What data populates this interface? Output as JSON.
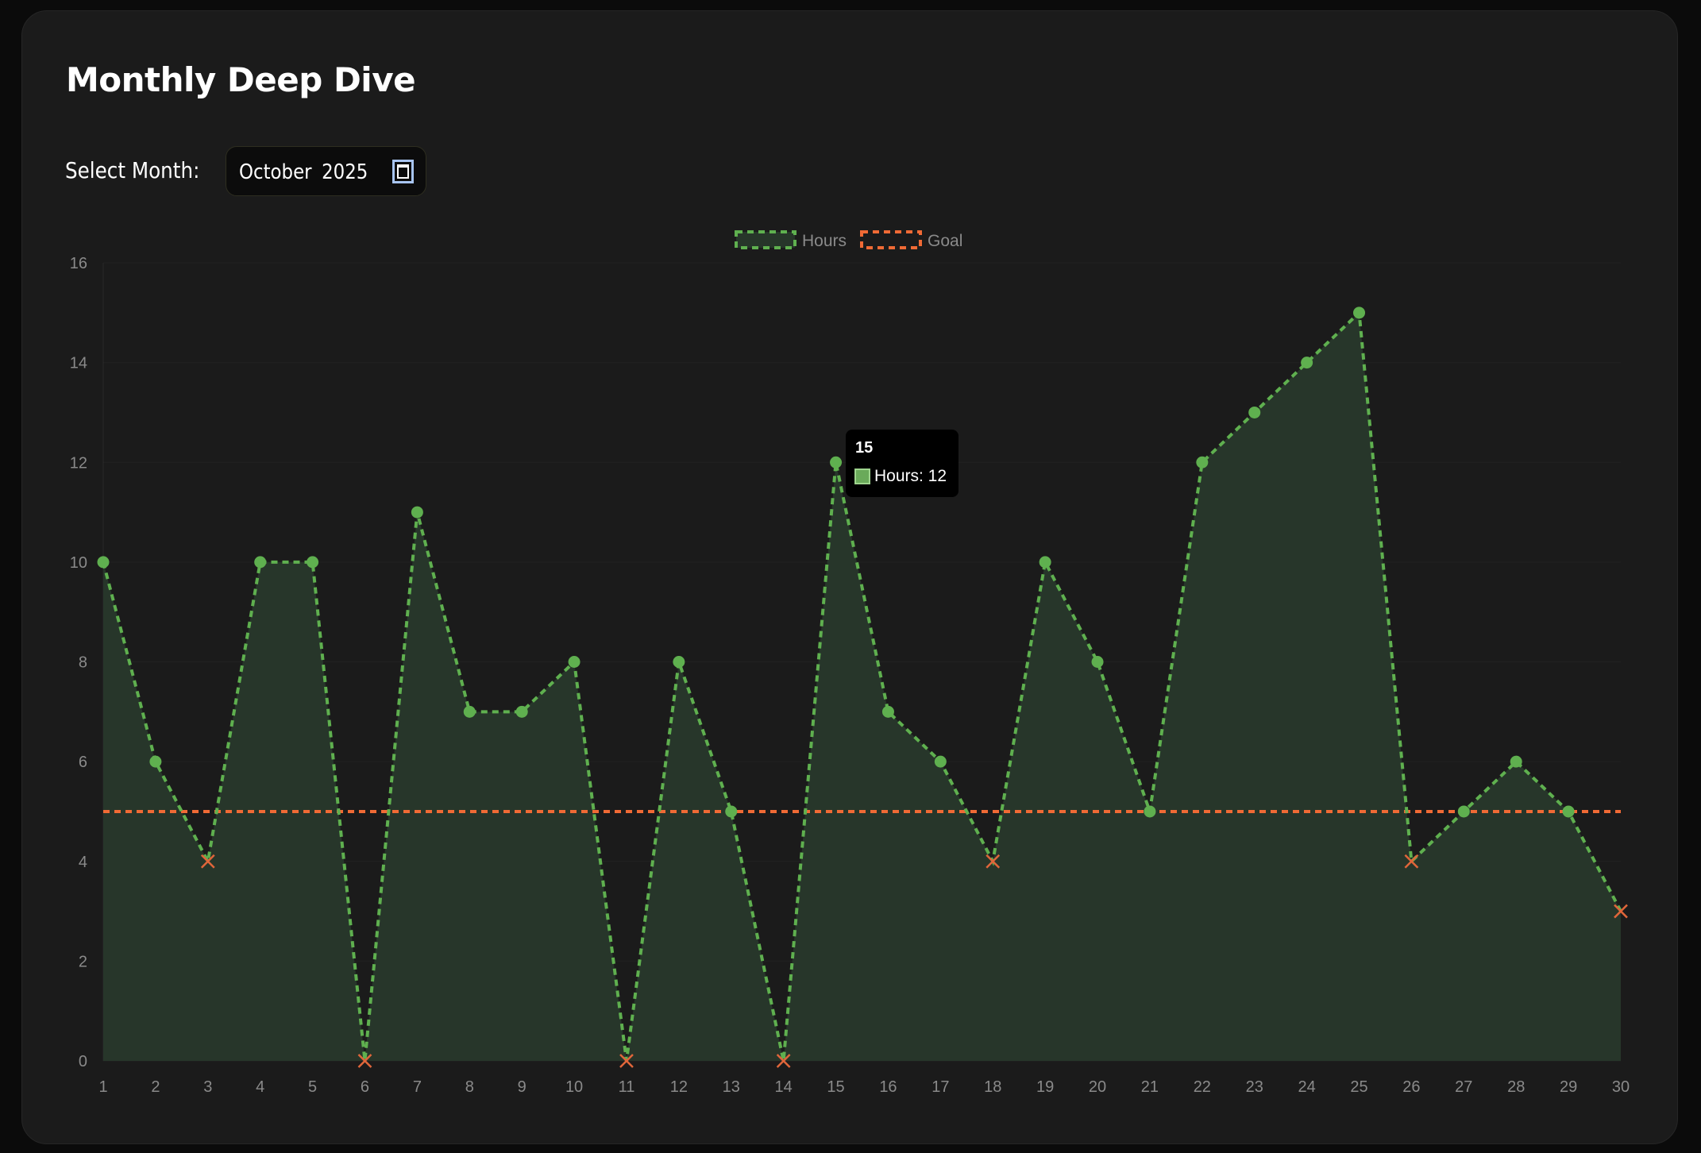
{
  "page": {
    "title": "Monthly Deep Dive",
    "select_label": "Select Month:",
    "month_value": "October 2025",
    "calendar_icon": "calendar-icon"
  },
  "colors": {
    "hours": "#5fb04f",
    "hours_fill": "#27362a",
    "goal": "#f06a35",
    "below_goal_marker": "#e0663a"
  },
  "chart_data": {
    "type": "line",
    "title": "",
    "x": [
      1,
      2,
      3,
      4,
      5,
      6,
      7,
      8,
      9,
      10,
      11,
      12,
      13,
      14,
      15,
      16,
      17,
      18,
      19,
      20,
      21,
      22,
      23,
      24,
      25,
      26,
      27,
      28,
      29,
      30
    ],
    "series": [
      {
        "name": "Hours",
        "values": [
          10,
          6,
          4,
          10,
          10,
          0,
          11,
          7,
          7,
          8,
          0,
          8,
          5,
          0,
          12,
          7,
          6,
          4,
          10,
          8,
          5,
          12,
          13,
          14,
          15,
          4,
          5,
          6,
          5,
          3
        ],
        "style": "dashed",
        "fill": true
      },
      {
        "name": "Goal",
        "values": [
          5,
          5,
          5,
          5,
          5,
          5,
          5,
          5,
          5,
          5,
          5,
          5,
          5,
          5,
          5,
          5,
          5,
          5,
          5,
          5,
          5,
          5,
          5,
          5,
          5,
          5,
          5,
          5,
          5,
          5
        ],
        "style": "dashed"
      }
    ],
    "ylim": [
      0,
      16
    ],
    "yticks": [
      0,
      2,
      4,
      6,
      8,
      10,
      12,
      14,
      16
    ],
    "xlabel": "",
    "ylabel": "",
    "legend": "top-center",
    "tooltip": {
      "title": "15",
      "label": "Hours: 12"
    }
  }
}
